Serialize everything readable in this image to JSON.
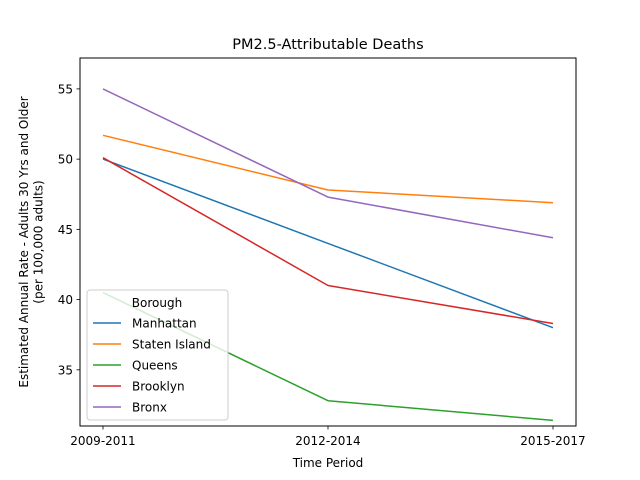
{
  "chart_data": {
    "type": "line",
    "title": "PM2.5-Attributable Deaths",
    "xlabel": "Time Period",
    "ylabel_lines": [
      "Estimated Annual Rate - Adults 30 Yrs and Older",
      "(per 100,000 adults)"
    ],
    "categories": [
      "2009-2011",
      "2012-2014",
      "2015-2017"
    ],
    "ylim": [
      31,
      57.2
    ],
    "yticks": [
      35,
      40,
      45,
      50,
      55
    ],
    "grid": false,
    "legend": {
      "title": "Borough",
      "position": "lower-left"
    },
    "series": [
      {
        "name": "Manhattan",
        "color": "#1f77b4",
        "values": [
          50.0,
          44.0,
          38.0
        ]
      },
      {
        "name": "Staten Island",
        "color": "#ff7f0e",
        "values": [
          51.7,
          47.8,
          46.9
        ]
      },
      {
        "name": "Queens",
        "color": "#2ca02c",
        "values": [
          40.5,
          32.8,
          31.4
        ]
      },
      {
        "name": "Brooklyn",
        "color": "#d62728",
        "values": [
          50.1,
          41.0,
          38.3
        ]
      },
      {
        "name": "Bronx",
        "color": "#9467bd",
        "values": [
          55.0,
          47.3,
          44.4
        ]
      }
    ]
  }
}
